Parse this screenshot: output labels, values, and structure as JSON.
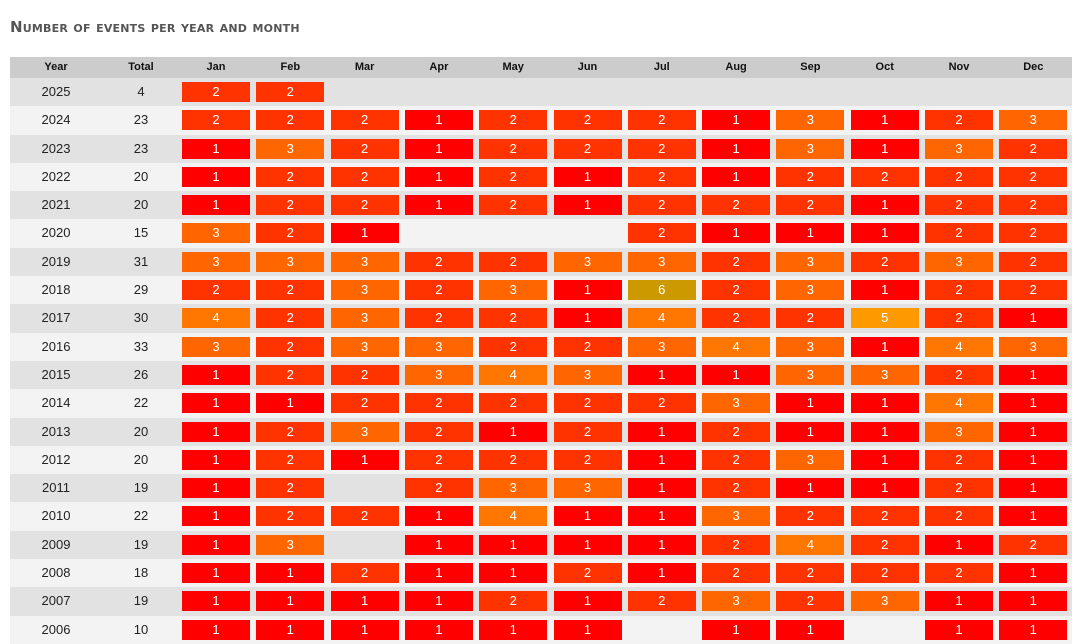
{
  "title": "Number of events per year and month",
  "colors": {
    "1": "#ff0000",
    "2": "#ff3300",
    "3": "#ff6600",
    "4": "#ff7700",
    "5": "#ff9900",
    "6": "#cc9900"
  },
  "chart_data": {
    "type": "table",
    "title": "Number of events per year and month",
    "columns": {
      "year": "Year",
      "total": "Total"
    },
    "months": [
      "Jan",
      "Feb",
      "Mar",
      "Apr",
      "May",
      "Jun",
      "Jul",
      "Aug",
      "Sep",
      "Oct",
      "Nov",
      "Dec"
    ],
    "rows": [
      {
        "year": "2025",
        "total": "4",
        "values": [
          2,
          2,
          null,
          null,
          null,
          null,
          null,
          null,
          null,
          null,
          null,
          null
        ]
      },
      {
        "year": "2024",
        "total": "23",
        "values": [
          2,
          2,
          2,
          1,
          2,
          2,
          2,
          1,
          3,
          1,
          2,
          3
        ]
      },
      {
        "year": "2023",
        "total": "23",
        "values": [
          1,
          3,
          2,
          1,
          2,
          2,
          2,
          1,
          3,
          1,
          3,
          2
        ]
      },
      {
        "year": "2022",
        "total": "20",
        "values": [
          1,
          2,
          2,
          1,
          2,
          1,
          2,
          1,
          2,
          2,
          2,
          2
        ]
      },
      {
        "year": "2021",
        "total": "20",
        "values": [
          1,
          2,
          2,
          1,
          2,
          1,
          2,
          2,
          2,
          1,
          2,
          2
        ]
      },
      {
        "year": "2020",
        "total": "15",
        "values": [
          3,
          2,
          1,
          null,
          null,
          null,
          2,
          1,
          1,
          1,
          2,
          2
        ]
      },
      {
        "year": "2019",
        "total": "31",
        "values": [
          3,
          3,
          3,
          2,
          2,
          3,
          3,
          2,
          3,
          2,
          3,
          2
        ]
      },
      {
        "year": "2018",
        "total": "29",
        "values": [
          2,
          2,
          3,
          2,
          3,
          1,
          6,
          2,
          3,
          1,
          2,
          2
        ]
      },
      {
        "year": "2017",
        "total": "30",
        "values": [
          4,
          2,
          3,
          2,
          2,
          1,
          4,
          2,
          2,
          5,
          2,
          1
        ]
      },
      {
        "year": "2016",
        "total": "33",
        "values": [
          3,
          2,
          3,
          3,
          2,
          2,
          3,
          4,
          3,
          1,
          4,
          3
        ]
      },
      {
        "year": "2015",
        "total": "26",
        "values": [
          1,
          2,
          2,
          3,
          4,
          3,
          1,
          1,
          3,
          3,
          2,
          1
        ]
      },
      {
        "year": "2014",
        "total": "22",
        "values": [
          1,
          1,
          2,
          2,
          2,
          2,
          2,
          3,
          1,
          1,
          4,
          1
        ]
      },
      {
        "year": "2013",
        "total": "20",
        "values": [
          1,
          2,
          3,
          2,
          1,
          2,
          1,
          2,
          1,
          1,
          3,
          1
        ]
      },
      {
        "year": "2012",
        "total": "20",
        "values": [
          1,
          2,
          1,
          2,
          2,
          2,
          1,
          2,
          3,
          1,
          2,
          1
        ]
      },
      {
        "year": "2011",
        "total": "19",
        "values": [
          1,
          2,
          null,
          2,
          3,
          3,
          1,
          2,
          1,
          1,
          2,
          1
        ]
      },
      {
        "year": "2010",
        "total": "22",
        "values": [
          1,
          2,
          2,
          1,
          4,
          1,
          1,
          3,
          2,
          2,
          2,
          1
        ]
      },
      {
        "year": "2009",
        "total": "19",
        "values": [
          1,
          3,
          null,
          1,
          1,
          1,
          1,
          2,
          4,
          2,
          1,
          2
        ]
      },
      {
        "year": "2008",
        "total": "18",
        "values": [
          1,
          1,
          2,
          1,
          1,
          2,
          1,
          2,
          2,
          2,
          2,
          1
        ]
      },
      {
        "year": "2007",
        "total": "19",
        "values": [
          1,
          1,
          1,
          1,
          2,
          1,
          2,
          3,
          2,
          3,
          1,
          1
        ]
      },
      {
        "year": "2006",
        "total": "10",
        "values": [
          1,
          1,
          1,
          1,
          1,
          1,
          null,
          1,
          1,
          null,
          1,
          1
        ]
      }
    ]
  }
}
